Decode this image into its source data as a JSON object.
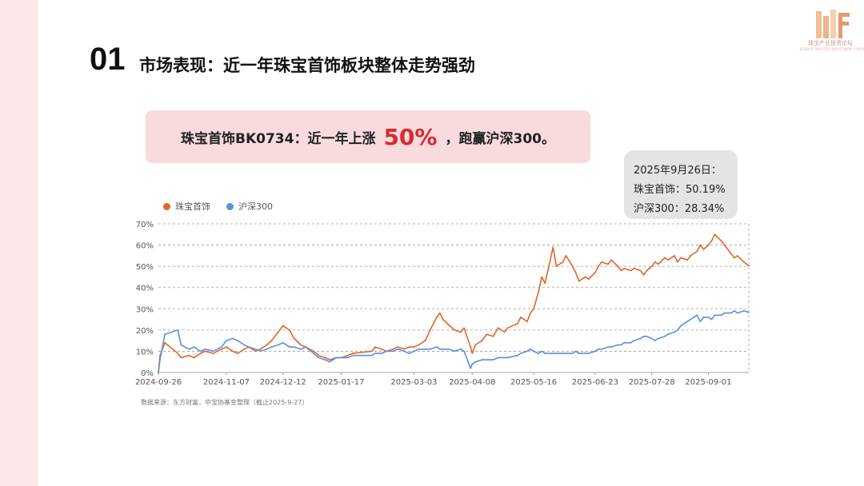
{
  "branding": {
    "logo_text": "珠宝产业投资论坛",
    "logo_sub": "JEWELRY INDUSTRY INVESTMENT FORUM",
    "accent": "#e9a57a"
  },
  "section": {
    "number": "01",
    "title": "市场表现：近一年珠宝首饰板块整体走势强劲"
  },
  "highlight": {
    "prefix": "珠宝首饰BK0734：近一年上涨",
    "value": "50%",
    "suffix": "，跑赢沪深300。",
    "value_color": "#d92a2a"
  },
  "tooltip": {
    "date": "2025年9月26日：",
    "line1": "珠宝首饰：50.19%",
    "line2": "沪深300：28.34%"
  },
  "source": "数据来源：东方财富，中宝协基金整理（截止2025-9-27）",
  "chart_data": {
    "type": "line",
    "legend_position": "top-left",
    "grid": true,
    "ylim": [
      0,
      70
    ],
    "yticks": [
      "0%",
      "10%",
      "20%",
      "30%",
      "40%",
      "50%",
      "60%",
      "70%"
    ],
    "xticks": [
      "2024-09-26",
      "2024-11-07",
      "2024-12-12",
      "2025-01-17",
      "2025-03-03",
      "2025-04-08",
      "2025-05-16",
      "2025-06-23",
      "2025-07-28",
      "2025-09-01"
    ],
    "xlim": [
      "2024-09-26",
      "2025-09-26"
    ],
    "series": [
      {
        "name": "珠宝首饰",
        "color": "#e0662a",
        "points": [
          [
            "2024-09-26",
            0
          ],
          [
            "2024-09-27",
            8
          ],
          [
            "2024-09-30",
            14
          ],
          [
            "2024-10-08",
            9
          ],
          [
            "2024-10-10",
            7
          ],
          [
            "2024-10-15",
            8
          ],
          [
            "2024-10-18",
            7
          ],
          [
            "2024-10-22",
            9
          ],
          [
            "2024-10-25",
            10
          ],
          [
            "2024-10-30",
            9
          ],
          [
            "2024-11-04",
            11
          ],
          [
            "2024-11-07",
            12
          ],
          [
            "2024-11-11",
            10
          ],
          [
            "2024-11-14",
            9
          ],
          [
            "2024-11-18",
            11
          ],
          [
            "2024-11-21",
            12
          ],
          [
            "2024-11-25",
            10
          ],
          [
            "2024-11-28",
            11
          ],
          [
            "2024-12-02",
            13
          ],
          [
            "2024-12-05",
            15
          ],
          [
            "2024-12-09",
            19
          ],
          [
            "2024-12-11",
            21
          ],
          [
            "2024-12-12",
            22
          ],
          [
            "2024-12-16",
            20
          ],
          [
            "2024-12-19",
            16
          ],
          [
            "2024-12-23",
            13
          ],
          [
            "2024-12-26",
            12
          ],
          [
            "2024-12-31",
            10
          ],
          [
            "2025-01-03",
            8
          ],
          [
            "2025-01-07",
            7
          ],
          [
            "2025-01-10",
            6
          ],
          [
            "2025-01-14",
            7
          ],
          [
            "2025-01-17",
            7
          ],
          [
            "2025-01-21",
            8
          ],
          [
            "2025-01-24",
            9
          ],
          [
            "2025-02-05",
            10
          ],
          [
            "2025-02-07",
            12
          ],
          [
            "2025-02-11",
            11
          ],
          [
            "2025-02-14",
            10
          ],
          [
            "2025-02-18",
            11
          ],
          [
            "2025-02-21",
            12
          ],
          [
            "2025-02-25",
            11
          ],
          [
            "2025-02-28",
            12
          ],
          [
            "2025-03-03",
            12
          ],
          [
            "2025-03-06",
            13
          ],
          [
            "2025-03-10",
            15
          ],
          [
            "2025-03-13",
            20
          ],
          [
            "2025-03-17",
            26
          ],
          [
            "2025-03-19",
            28
          ],
          [
            "2025-03-21",
            25
          ],
          [
            "2025-03-25",
            22
          ],
          [
            "2025-03-28",
            20
          ],
          [
            "2025-04-01",
            19
          ],
          [
            "2025-04-03",
            21
          ],
          [
            "2025-04-07",
            12
          ],
          [
            "2025-04-08",
            9
          ],
          [
            "2025-04-10",
            13
          ],
          [
            "2025-04-14",
            15
          ],
          [
            "2025-04-17",
            18
          ],
          [
            "2025-04-21",
            17
          ],
          [
            "2025-04-24",
            21
          ],
          [
            "2025-04-28",
            19
          ],
          [
            "2025-04-30",
            21
          ],
          [
            "2025-05-06",
            23
          ],
          [
            "2025-05-08",
            26
          ],
          [
            "2025-05-12",
            24
          ],
          [
            "2025-05-14",
            28
          ],
          [
            "2025-05-16",
            30
          ],
          [
            "2025-05-19",
            38
          ],
          [
            "2025-05-21",
            45
          ],
          [
            "2025-05-23",
            42
          ],
          [
            "2025-05-26",
            52
          ],
          [
            "2025-05-28",
            59
          ],
          [
            "2025-05-30",
            50
          ],
          [
            "2025-06-03",
            52
          ],
          [
            "2025-06-05",
            55
          ],
          [
            "2025-06-09",
            50
          ],
          [
            "2025-06-11",
            47
          ],
          [
            "2025-06-13",
            43
          ],
          [
            "2025-06-17",
            45
          ],
          [
            "2025-06-19",
            44
          ],
          [
            "2025-06-23",
            47
          ],
          [
            "2025-06-25",
            50
          ],
          [
            "2025-06-27",
            52
          ],
          [
            "2025-07-01",
            51
          ],
          [
            "2025-07-03",
            53
          ],
          [
            "2025-07-07",
            50
          ],
          [
            "2025-07-09",
            48
          ],
          [
            "2025-07-11",
            49
          ],
          [
            "2025-07-15",
            48
          ],
          [
            "2025-07-17",
            49
          ],
          [
            "2025-07-21",
            48
          ],
          [
            "2025-07-23",
            46
          ],
          [
            "2025-07-25",
            48
          ],
          [
            "2025-07-28",
            50
          ],
          [
            "2025-07-30",
            52
          ],
          [
            "2025-08-01",
            51
          ],
          [
            "2025-08-05",
            54
          ],
          [
            "2025-08-07",
            53
          ],
          [
            "2025-08-11",
            55
          ],
          [
            "2025-08-13",
            52
          ],
          [
            "2025-08-15",
            54
          ],
          [
            "2025-08-19",
            53
          ],
          [
            "2025-08-21",
            55
          ],
          [
            "2025-08-25",
            57
          ],
          [
            "2025-08-27",
            60
          ],
          [
            "2025-08-29",
            58
          ],
          [
            "2025-09-01",
            60
          ],
          [
            "2025-09-03",
            62
          ],
          [
            "2025-09-05",
            65
          ],
          [
            "2025-09-09",
            62
          ],
          [
            "2025-09-11",
            60
          ],
          [
            "2025-09-15",
            56
          ],
          [
            "2025-09-17",
            54
          ],
          [
            "2025-09-19",
            55
          ],
          [
            "2025-09-23",
            52
          ],
          [
            "2025-09-26",
            50.19
          ]
        ]
      },
      {
        "name": "沪深300",
        "color": "#5b8fe0",
        "points": [
          [
            "2024-09-26",
            0
          ],
          [
            "2024-09-27",
            6
          ],
          [
            "2024-09-30",
            18
          ],
          [
            "2024-10-08",
            20
          ],
          [
            "2024-10-10",
            13
          ],
          [
            "2024-10-15",
            11
          ],
          [
            "2024-10-18",
            12
          ],
          [
            "2024-10-22",
            10
          ],
          [
            "2024-10-25",
            11
          ],
          [
            "2024-10-30",
            10
          ],
          [
            "2024-11-04",
            12
          ],
          [
            "2024-11-07",
            15
          ],
          [
            "2024-11-11",
            16
          ],
          [
            "2024-11-14",
            15
          ],
          [
            "2024-11-18",
            13
          ],
          [
            "2024-11-21",
            12
          ],
          [
            "2024-11-25",
            11
          ],
          [
            "2024-11-28",
            10
          ],
          [
            "2024-12-02",
            11
          ],
          [
            "2024-12-05",
            12
          ],
          [
            "2024-12-09",
            13
          ],
          [
            "2024-12-12",
            14
          ],
          [
            "2024-12-16",
            12
          ],
          [
            "2024-12-19",
            12
          ],
          [
            "2024-12-23",
            11
          ],
          [
            "2024-12-26",
            12
          ],
          [
            "2024-12-31",
            9
          ],
          [
            "2025-01-03",
            7
          ],
          [
            "2025-01-07",
            6
          ],
          [
            "2025-01-10",
            5
          ],
          [
            "2025-01-14",
            7
          ],
          [
            "2025-01-17",
            7
          ],
          [
            "2025-01-21",
            7
          ],
          [
            "2025-01-24",
            8
          ],
          [
            "2025-02-05",
            8
          ],
          [
            "2025-02-07",
            9
          ],
          [
            "2025-02-11",
            9
          ],
          [
            "2025-02-14",
            10
          ],
          [
            "2025-02-18",
            10
          ],
          [
            "2025-02-21",
            11
          ],
          [
            "2025-02-25",
            10
          ],
          [
            "2025-02-28",
            9
          ],
          [
            "2025-03-03",
            10
          ],
          [
            "2025-03-06",
            11
          ],
          [
            "2025-03-10",
            11
          ],
          [
            "2025-03-13",
            11
          ],
          [
            "2025-03-17",
            12
          ],
          [
            "2025-03-19",
            11
          ],
          [
            "2025-03-21",
            11
          ],
          [
            "2025-03-25",
            11
          ],
          [
            "2025-03-28",
            10
          ],
          [
            "2025-04-01",
            11
          ],
          [
            "2025-04-03",
            10
          ],
          [
            "2025-04-07",
            2
          ],
          [
            "2025-04-08",
            4
          ],
          [
            "2025-04-10",
            5
          ],
          [
            "2025-04-14",
            6
          ],
          [
            "2025-04-17",
            6
          ],
          [
            "2025-04-21",
            6
          ],
          [
            "2025-04-24",
            7
          ],
          [
            "2025-04-28",
            7
          ],
          [
            "2025-04-30",
            7
          ],
          [
            "2025-05-06",
            8
          ],
          [
            "2025-05-08",
            9
          ],
          [
            "2025-05-12",
            10
          ],
          [
            "2025-05-14",
            11
          ],
          [
            "2025-05-16",
            10
          ],
          [
            "2025-05-19",
            9
          ],
          [
            "2025-05-21",
            10
          ],
          [
            "2025-05-23",
            9
          ],
          [
            "2025-05-26",
            9
          ],
          [
            "2025-05-28",
            9
          ],
          [
            "2025-05-30",
            9
          ],
          [
            "2025-06-03",
            9
          ],
          [
            "2025-06-05",
            9
          ],
          [
            "2025-06-09",
            9
          ],
          [
            "2025-06-11",
            10
          ],
          [
            "2025-06-13",
            9
          ],
          [
            "2025-06-17",
            9
          ],
          [
            "2025-06-19",
            9
          ],
          [
            "2025-06-23",
            10
          ],
          [
            "2025-06-25",
            11
          ],
          [
            "2025-06-27",
            11
          ],
          [
            "2025-07-01",
            12
          ],
          [
            "2025-07-03",
            12
          ],
          [
            "2025-07-07",
            13
          ],
          [
            "2025-07-09",
            13
          ],
          [
            "2025-07-11",
            14
          ],
          [
            "2025-07-15",
            14
          ],
          [
            "2025-07-17",
            15
          ],
          [
            "2025-07-21",
            16
          ],
          [
            "2025-07-23",
            17
          ],
          [
            "2025-07-25",
            17
          ],
          [
            "2025-07-28",
            16
          ],
          [
            "2025-07-30",
            15
          ],
          [
            "2025-08-01",
            16
          ],
          [
            "2025-08-05",
            17
          ],
          [
            "2025-08-07",
            18
          ],
          [
            "2025-08-11",
            19
          ],
          [
            "2025-08-13",
            20
          ],
          [
            "2025-08-15",
            22
          ],
          [
            "2025-08-19",
            24
          ],
          [
            "2025-08-21",
            25
          ],
          [
            "2025-08-25",
            27
          ],
          [
            "2025-08-27",
            24
          ],
          [
            "2025-08-29",
            26
          ],
          [
            "2025-09-01",
            26
          ],
          [
            "2025-09-03",
            25
          ],
          [
            "2025-09-05",
            27
          ],
          [
            "2025-09-09",
            27
          ],
          [
            "2025-09-11",
            28
          ],
          [
            "2025-09-15",
            28
          ],
          [
            "2025-09-17",
            29
          ],
          [
            "2025-09-19",
            28
          ],
          [
            "2025-09-23",
            29
          ],
          [
            "2025-09-26",
            28.34
          ]
        ]
      }
    ]
  }
}
